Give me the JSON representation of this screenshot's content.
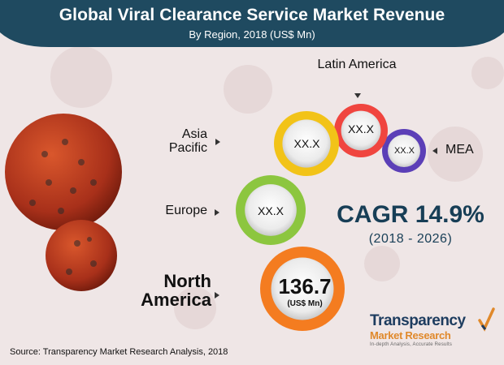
{
  "header": {
    "title": "Global Viral Clearance Service Market Revenue",
    "subtitle": "By Region, 2018 (US$ Mn)"
  },
  "colors": {
    "header": "#1f4a60",
    "north_america": "#f47c20",
    "europe": "#8cc63f",
    "asia_pacific": "#f2c318",
    "latin_america": "#f0453f",
    "mea": "#5b3fb7",
    "cagr": "#173e56",
    "virus": "#b8391c"
  },
  "chart_data": {
    "type": "bubble",
    "title": "Global Viral Clearance Service Market Revenue",
    "subtitle": "By Region, 2018 (US$ Mn)",
    "series": [
      {
        "category": "North America",
        "value": 136.7,
        "label": "136.7",
        "unit": "(US$ Mn)",
        "color": "#f47c20"
      },
      {
        "category": "Europe",
        "value": null,
        "label": "XX.X",
        "color": "#8cc63f"
      },
      {
        "category": "Asia Pacific",
        "value": null,
        "label": "XX.X",
        "color": "#f2c318"
      },
      {
        "category": "Latin America",
        "value": null,
        "label": "XX.X",
        "color": "#f0453f"
      },
      {
        "category": "MEA",
        "value": null,
        "label": "XX.X",
        "color": "#5b3fb7"
      }
    ],
    "annotation": {
      "cagr": "CAGR 14.9%",
      "period": "(2018 - 2026)"
    }
  },
  "footer": {
    "source": "Source: Transparency Market Research Analysis, 2018"
  },
  "brand": {
    "name": "Transparency",
    "sub": "Market Research",
    "tagline": "In-depth Analysis, Accurate Results"
  }
}
